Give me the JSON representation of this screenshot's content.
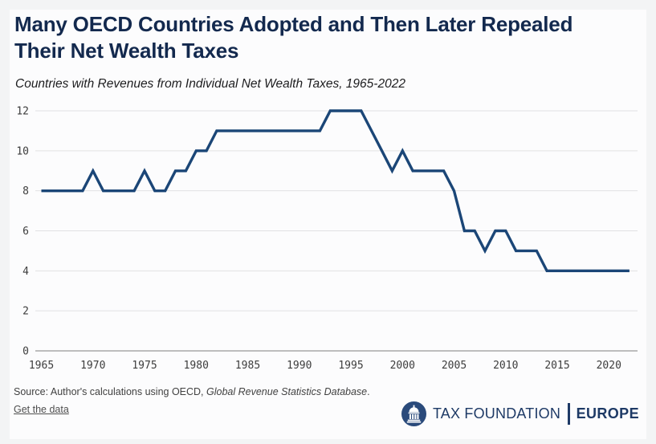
{
  "header": {
    "title_line1": "Many OECD Countries Adopted and Then Later Repealed",
    "title_line2": "Their Net Wealth Taxes",
    "subtitle": "Countries with Revenues from Individual Net Wealth Taxes, 1965-2022"
  },
  "chart_data": {
    "type": "line",
    "title": "Many OECD Countries Adopted and Then Later Repealed Their Net Wealth Taxes",
    "subtitle": "Countries with Revenues from Individual Net Wealth Taxes, 1965-2022",
    "xlabel": "",
    "ylabel": "",
    "x_start": 1965,
    "x_end": 2022,
    "values": [
      8,
      8,
      8,
      8,
      8,
      9,
      8,
      8,
      8,
      8,
      9,
      8,
      8,
      9,
      9,
      10,
      10,
      11,
      11,
      11,
      11,
      11,
      11,
      11,
      11,
      11,
      11,
      11,
      12,
      12,
      12,
      12,
      11,
      10,
      9,
      10,
      9,
      9,
      9,
      9,
      8,
      6,
      6,
      5,
      6,
      6,
      5,
      5,
      5,
      4,
      4,
      4,
      4,
      4,
      4,
      4,
      4,
      4
    ],
    "x_ticks": [
      1965,
      1970,
      1975,
      1980,
      1985,
      1990,
      1995,
      2000,
      2005,
      2010,
      2015,
      2020
    ],
    "y_ticks": [
      0,
      2,
      4,
      6,
      8,
      10,
      12
    ],
    "ylim": [
      0,
      12
    ],
    "grid": "horizontal",
    "legend": "none",
    "line_color": "#1b4677",
    "gridline_color": "#e1e1e3",
    "baseline_color": "#979797"
  },
  "footer": {
    "source_prefix": "Source: Author's calculations using OECD, ",
    "source_italic": "Global Revenue Statistics Database",
    "source_suffix": ".",
    "link_label": "Get the data",
    "brand": "TAX FOUNDATION",
    "brand_region": "EUROPE"
  },
  "colors": {
    "title": "#13294e",
    "logo_navy": "#1e3a66",
    "badge_navy": "#2a4a7b"
  }
}
